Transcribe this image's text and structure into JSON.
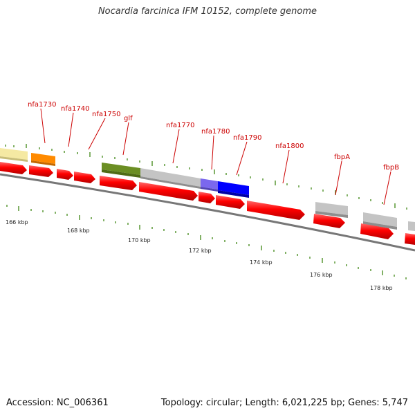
{
  "title": "Nocardia farcinica IFM 10152, complete genome",
  "accession": "Accession: NC_006361",
  "summary": "Topology: circular; Length: 6,021,225 bp; Genes: 5,747",
  "scale_labels": [
    "166 kbp",
    "168 kbp",
    "170 kbp",
    "172 kbp",
    "174 kbp",
    "176 kbp",
    "178 kbp"
  ],
  "gene_labels": [
    "nfa1730",
    "nfa1740",
    "nfa1750",
    "glf",
    "nfa1770",
    "nfa1780",
    "nfa1790",
    "nfa1800",
    "fbpA",
    "fbpB"
  ],
  "colors": {
    "label": "#cc0000",
    "cds": "#ff0000",
    "tick": "#2e7d00",
    "backbone": "#777777",
    "yellow": "#f5e9a3",
    "orange": "#ff8a00",
    "olive": "#6b8e23",
    "gray": "#bdbdbd",
    "purple": "#7b68ee",
    "blue": "#0000ff"
  }
}
